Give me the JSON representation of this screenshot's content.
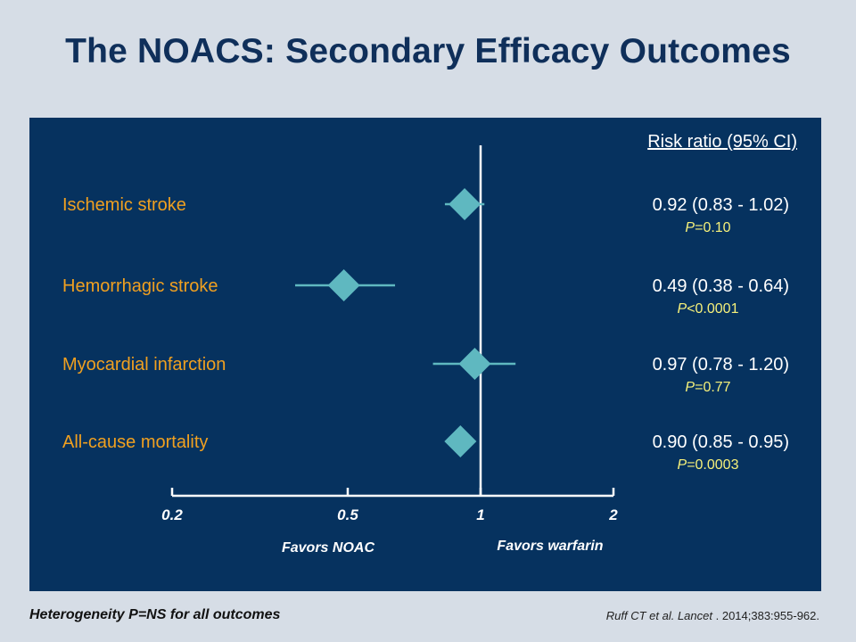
{
  "title": "The NOACS: Secondary Efficacy Outcomes",
  "footer": {
    "heterogeneity": "Heterogeneity P=NS for all outcomes",
    "citation_authors": "Ruff CT et al. Lancet",
    "citation_details": " . 2014;383:955-962."
  },
  "colors": {
    "background": "#d6dde6",
    "panel": "#06325f",
    "title": "#0f2f5a",
    "label": "#f0a020",
    "marker": "#5fb8c0",
    "pvalue": "#f5f07a",
    "text": "#ffffff"
  },
  "chart_data": {
    "type": "forest",
    "scale": "log",
    "reference_value": 1,
    "xlim": [
      0.2,
      2
    ],
    "x_ticks": [
      {
        "value": 0.2,
        "label": "0.2"
      },
      {
        "value": 0.5,
        "label": "0.5"
      },
      {
        "value": 1,
        "label": "1"
      },
      {
        "value": 2,
        "label": "2"
      }
    ],
    "favors_left": "Favors NOAC",
    "favors_right": "Favors warfarin",
    "column_header": "Risk ratio (95% CI)",
    "rows": [
      {
        "label": "Ischemic stroke",
        "rr": 0.92,
        "ci": [
          0.83,
          1.02
        ],
        "ci_text": "0.92 (0.83 - 1.02)",
        "p_prefix": "P",
        "p_rest": "=0.10"
      },
      {
        "label": "Hemorrhagic stroke",
        "rr": 0.49,
        "ci": [
          0.38,
          0.64
        ],
        "ci_text": "0.49 (0.38 - 0.64)",
        "p_prefix": "P",
        "p_rest": "<0.0001"
      },
      {
        "label": "Myocardial infarction",
        "rr": 0.97,
        "ci": [
          0.78,
          1.2
        ],
        "ci_text": "0.97 (0.78 - 1.20)",
        "p_prefix": "P",
        "p_rest": "=0.77"
      },
      {
        "label": "All-cause mortality",
        "rr": 0.9,
        "ci": [
          0.85,
          0.95
        ],
        "ci_text": "0.90 (0.85 - 0.95)",
        "p_prefix": "P",
        "p_rest": "=0.0003"
      }
    ]
  }
}
